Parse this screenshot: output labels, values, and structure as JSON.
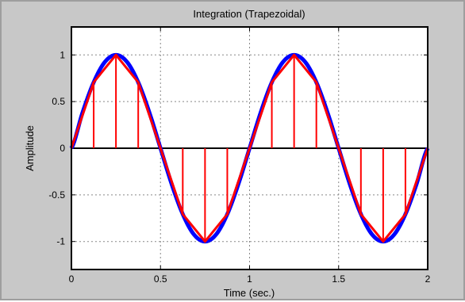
{
  "chart_data": {
    "type": "line",
    "title": "Integration (Trapezoidal)",
    "xlabel": "Time (sec.)",
    "ylabel": "Amplitude",
    "xlim": [
      0,
      2
    ],
    "ylim": [
      -1.3,
      1.3
    ],
    "xticks": [
      0,
      0.5,
      1,
      1.5,
      2
    ],
    "xtick_labels": [
      "0",
      "0.5",
      "1",
      "1.5",
      "2"
    ],
    "yticks": [
      1,
      0.5,
      0,
      -0.5,
      -1
    ],
    "ytick_labels": [
      "1",
      "0.5",
      "0",
      "-0.5",
      "-1"
    ],
    "grid": true,
    "series": [
      {
        "color": "#0000ff",
        "x": [
          0,
          0.0625,
          0.125,
          0.1875,
          0.25,
          0.3125,
          0.375,
          0.4375,
          0.5,
          0.5625,
          0.625,
          0.6875,
          0.75,
          0.8125,
          0.875,
          0.9375,
          1,
          1.0625,
          1.125,
          1.1875,
          1.25,
          1.3125,
          1.375,
          1.4375,
          1.5,
          1.5625,
          1.625,
          1.6875,
          1.75,
          1.8125,
          1.875,
          1.9375,
          2
        ],
        "y": [
          0,
          0.383,
          0.707,
          0.924,
          1,
          0.924,
          0.707,
          0.383,
          0,
          -0.383,
          -0.707,
          -0.924,
          -1,
          -0.924,
          -0.707,
          -0.383,
          0,
          0.383,
          0.707,
          0.924,
          1,
          0.924,
          0.707,
          0.383,
          0,
          -0.383,
          -0.707,
          -0.924,
          -1,
          -0.924,
          -0.707,
          -0.383,
          0
        ]
      },
      {
        "color": "#ff0000",
        "x": [
          0,
          0.125,
          0.25,
          0.375,
          0.5,
          0.625,
          0.75,
          0.875,
          1,
          1.125,
          1.25,
          1.375,
          1.5,
          1.625,
          1.75,
          1.875,
          2
        ],
        "y": [
          0,
          0.707,
          1,
          0.707,
          0,
          -0.707,
          -1,
          -0.707,
          0,
          0.707,
          1,
          0.707,
          0,
          -0.707,
          -1,
          -0.707,
          0
        ]
      }
    ],
    "colors": {
      "figure_bg": "#c8c8c8",
      "axes_bg": "#ffffff",
      "grid": "#888888"
    }
  }
}
